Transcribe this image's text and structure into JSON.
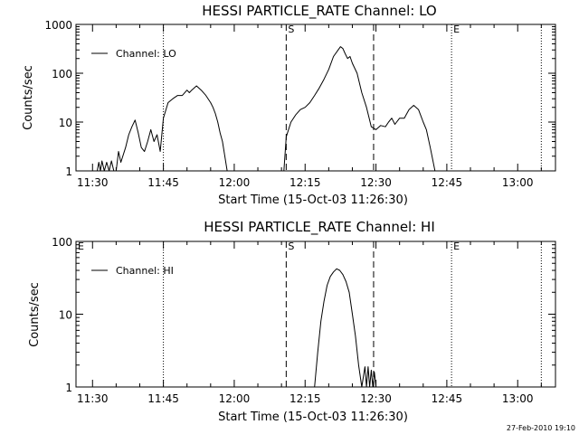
{
  "chart_data": [
    {
      "type": "line",
      "title": "HESSI PARTICLE_RATE Channel: LO",
      "xlabel": "Start Time (15-Oct-03 11:26:30)",
      "ylabel": "Counts/sec",
      "yscale": "log",
      "xlim": [
        "11:26:30",
        "13:08:00"
      ],
      "ylim": [
        1,
        1000
      ],
      "xticks": [
        "11:30",
        "11:45",
        "12:00",
        "12:15",
        "12:30",
        "12:45",
        "13:00"
      ],
      "yticks": [
        "1",
        "10",
        "100",
        "1000"
      ],
      "legend": {
        "label": "Channel: LO",
        "placement": "top-left"
      },
      "vlines": [
        {
          "time": "11:45:00",
          "style": "dotted"
        },
        {
          "time": "12:11:00",
          "style": "dashed",
          "label": "S"
        },
        {
          "time": "12:29:30",
          "style": "dashed"
        },
        {
          "time": "12:46:00",
          "style": "dotted",
          "label": "E"
        },
        {
          "time": "13:05:00",
          "style": "dotted"
        }
      ],
      "series": [
        {
          "name": "Channel: LO",
          "x": [
            "11:31:00",
            "11:31:20",
            "11:31:40",
            "11:32:00",
            "11:32:30",
            "11:33:00",
            "11:33:30",
            "11:34:00",
            "11:34:30",
            "11:35:00",
            "11:35:30",
            "11:36:00",
            "11:37:00",
            "11:37:40",
            "11:38:20",
            "11:39:00",
            "11:39:40",
            "11:40:20",
            "11:41:00",
            "11:41:40",
            "11:42:20",
            "11:43:00",
            "11:43:40",
            "11:44:20",
            "11:45:00",
            "11:46:00",
            "11:47:00",
            "11:48:00",
            "11:49:00",
            "11:50:00",
            "11:50:30",
            "11:51:00",
            "11:52:00",
            "11:53:00",
            "11:54:00",
            "11:55:00",
            "11:55:30",
            "11:56:00",
            "11:56:30",
            "11:57:00",
            "11:57:30",
            "11:58:00",
            "11:58:30",
            "12:10:30",
            "12:11:00",
            "12:12:00",
            "12:13:00",
            "12:14:00",
            "12:15:00",
            "12:16:00",
            "12:17:00",
            "12:18:00",
            "12:19:00",
            "12:20:00",
            "12:21:00",
            "12:22:00",
            "12:22:30",
            "12:23:00",
            "12:23:30",
            "12:24:00",
            "12:24:30",
            "12:25:00",
            "12:26:00",
            "12:27:00",
            "12:28:00",
            "12:29:00",
            "12:30:00",
            "12:31:00",
            "12:32:00",
            "12:32:40",
            "12:33:20",
            "12:34:00",
            "12:35:00",
            "12:36:00",
            "12:37:00",
            "12:38:00",
            "12:39:00",
            "12:40:00",
            "12:40:40",
            "12:41:30",
            "12:42:30"
          ],
          "y": [
            1,
            1.5,
            1,
            1.6,
            1,
            1.5,
            1,
            1.6,
            1,
            1,
            2.5,
            1.5,
            3,
            5.5,
            8,
            11,
            6,
            3,
            2.5,
            4,
            7,
            4,
            5.5,
            2.5,
            12,
            25,
            30,
            35,
            35,
            45,
            40,
            45,
            55,
            45,
            35,
            25,
            20,
            15,
            10,
            6,
            4,
            2,
            1,
            1,
            5,
            10,
            14,
            18,
            20,
            25,
            35,
            50,
            75,
            120,
            220,
            300,
            350,
            320,
            250,
            200,
            220,
            160,
            100,
            40,
            20,
            8,
            7,
            8.5,
            8,
            10,
            12,
            9,
            12,
            12,
            18,
            22,
            18,
            10,
            7,
            3,
            1
          ]
        }
      ]
    },
    {
      "type": "line",
      "title": "HESSI PARTICLE_RATE Channel: HI",
      "xlabel": "Start Time (15-Oct-03 11:26:30)",
      "ylabel": "Counts/sec",
      "yscale": "log",
      "xlim": [
        "11:26:30",
        "13:08:00"
      ],
      "ylim": [
        1,
        100
      ],
      "xticks": [
        "11:30",
        "11:45",
        "12:00",
        "12:15",
        "12:30",
        "12:45",
        "13:00"
      ],
      "yticks": [
        "1",
        "10",
        "100"
      ],
      "legend": {
        "label": "Channel: HI",
        "placement": "top-left"
      },
      "vlines": [
        {
          "time": "11:26:30",
          "style": "none",
          "label": "E"
        },
        {
          "time": "11:45:00",
          "style": "dotted"
        },
        {
          "time": "12:11:00",
          "style": "dashed",
          "label": "S"
        },
        {
          "time": "12:29:30",
          "style": "dashed"
        },
        {
          "time": "12:46:00",
          "style": "dotted",
          "label": "E"
        },
        {
          "time": "13:05:00",
          "style": "dotted"
        }
      ],
      "series": [
        {
          "name": "Channel: HI",
          "x": [
            "12:17:00",
            "12:17:40",
            "12:18:20",
            "12:19:00",
            "12:19:40",
            "12:20:20",
            "12:21:00",
            "12:21:40",
            "12:22:20",
            "12:23:00",
            "12:23:40",
            "12:24:20",
            "12:25:00",
            "12:25:40",
            "12:26:20",
            "12:27:00",
            "12:27:40",
            "12:28:00",
            "12:28:20",
            "12:28:40",
            "12:29:00",
            "12:29:20",
            "12:29:40",
            "12:30:00"
          ],
          "y": [
            1,
            3,
            8,
            15,
            25,
            33,
            38,
            42,
            40,
            35,
            28,
            20,
            10,
            5,
            2,
            1,
            1.9,
            1,
            1.9,
            1,
            1.7,
            1,
            1.6,
            1
          ]
        }
      ]
    }
  ],
  "footer": {
    "timestamp": "27-Feb-2010 19:10"
  },
  "colors": {
    "background": "#ffffff",
    "foreground": "#000000"
  }
}
